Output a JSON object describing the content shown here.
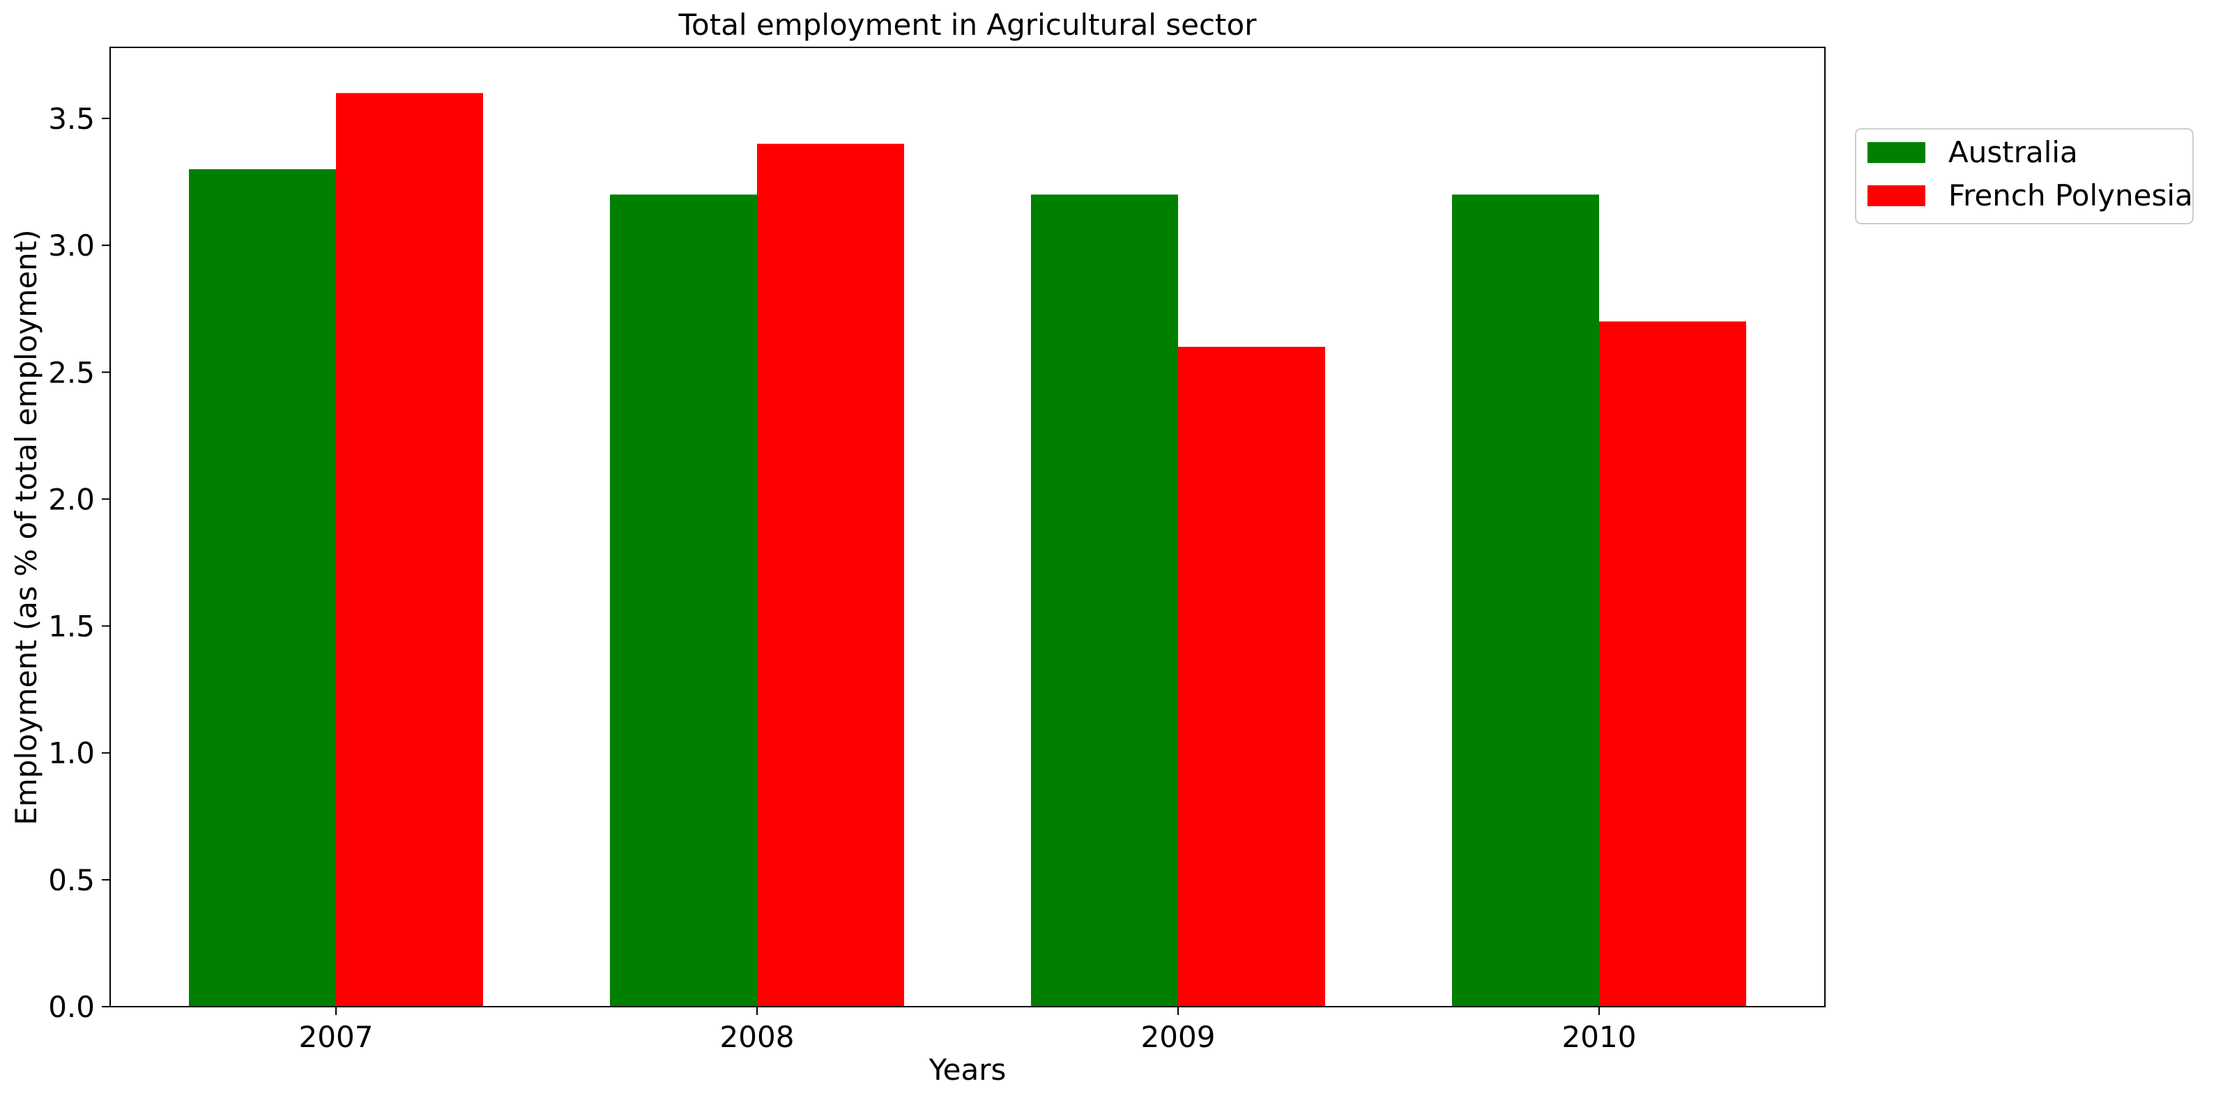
{
  "chart_data": {
    "type": "bar",
    "title": "Total employment in Agricultural sector",
    "xlabel": "Years",
    "ylabel": "Employment (as % of total employment)",
    "categories": [
      "2007",
      "2008",
      "2009",
      "2010"
    ],
    "series": [
      {
        "name": "Australia",
        "color": "#008000",
        "values": [
          3.3,
          3.2,
          3.2,
          3.2
        ]
      },
      {
        "name": "French Polynesia",
        "color": "#ff0000",
        "values": [
          3.6,
          3.4,
          2.6,
          2.7
        ]
      }
    ],
    "ylim": [
      0,
      3.78
    ],
    "yticks": [
      "0.0",
      "0.5",
      "1.0",
      "1.5",
      "2.0",
      "2.5",
      "3.0",
      "3.5"
    ],
    "grid": false,
    "legend_position": "upper right, outside plot"
  }
}
